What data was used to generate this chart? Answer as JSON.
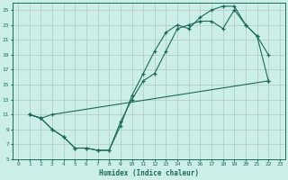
{
  "xlabel": "Humidex (Indice chaleur)",
  "bg_color": "#cceee8",
  "grid_color": "#b0c8c0",
  "line_color": "#1a6b5a",
  "xlim": [
    -0.5,
    23.5
  ],
  "ylim": [
    5,
    26
  ],
  "xticks": [
    0,
    1,
    2,
    3,
    4,
    5,
    6,
    7,
    8,
    9,
    10,
    11,
    12,
    13,
    14,
    15,
    16,
    17,
    18,
    19,
    20,
    21,
    22,
    23
  ],
  "yticks": [
    5,
    7,
    9,
    11,
    13,
    15,
    17,
    19,
    21,
    23,
    25
  ],
  "line1_x": [
    1,
    2,
    3,
    4,
    5,
    6,
    7,
    8,
    9,
    10,
    11,
    12,
    13,
    14,
    15,
    16,
    17,
    18,
    19,
    20,
    21,
    22
  ],
  "line1_y": [
    11,
    10.5,
    9,
    8,
    6.5,
    6.5,
    6.2,
    6.2,
    9.5,
    13.5,
    16.5,
    19.5,
    22.0,
    23.0,
    22.5,
    24.0,
    25.0,
    25.5,
    25.5,
    23.0,
    21.5,
    19.0
  ],
  "line2_x": [
    1,
    2,
    3,
    4,
    5,
    6,
    7,
    8,
    9,
    10,
    11,
    12,
    13,
    14,
    15,
    16,
    17,
    18,
    19,
    20,
    21,
    22
  ],
  "line2_y": [
    11,
    10.5,
    9,
    8,
    6.5,
    6.5,
    6.2,
    6.2,
    10,
    13.0,
    15.5,
    16.5,
    19.5,
    22.5,
    23.0,
    23.5,
    23.5,
    22.5,
    25.0,
    23.0,
    21.5,
    15.5
  ],
  "line3_x": [
    1,
    2,
    3,
    22
  ],
  "line3_y": [
    11,
    10.5,
    11,
    15.5
  ]
}
